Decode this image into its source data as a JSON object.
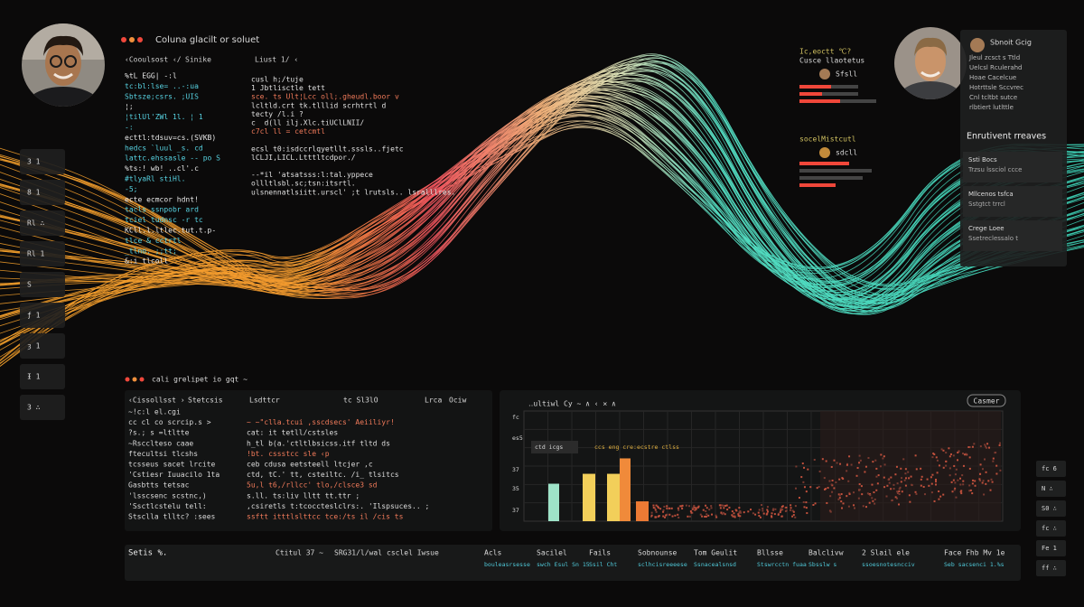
{
  "header": {
    "title": "Coluna glacilt or soluet"
  },
  "code_top": {
    "tab_left": "‹Cooulsost ‹/",
    "tab_mid": "Sinike",
    "tab_right": "Liust 1/ ‹",
    "col1": [
      "%tL EGG|  -:l",
      "tc:bl:lse= ..-:ua",
      "Sbtsze;csrs. ;UIS",
      "¦;",
      "¦tilUl'ZWl 1l. ¦ 1",
      "  -:",
      "ecttl:tdsuv=cs.(SVKB)",
      "hedcs  `luul _s. cd",
      "lattc.ehssasle -- po S",
      "%ts:! wb! ..cl'.c",
      "#tlyaRl stiHl.",
      "-5;",
      "ecte  ecmcor hdnt!",
      "tacls ssnpobr ard",
      "tciel  tudnsc -r tc",
      "KCll.l.ltlec.tut.t.p-",
      "tlce  & cctrtl",
      "_tlno. ;;tt;",
      "&:i  tlcoll"
    ],
    "col2": [
      "cusl h;/tuje",
      "1 Jbtlisctle tett",
      "sce. ts  Ult¦Lcc oll;.gheudl.boor v",
      "lcltld.crt  tk.tlllid  scrhtrtl  d",
      "   tecty  /l.i  ?",
      "c  d(ll  ilj.Xlc.tiUClLNII/",
      "c7cl  ll  = cetcmtl",
      "",
      "ecsl  t0:isdccrlqyetllt.sssls..fjetc",
      "   lCLJI,LICL.Ltttltcdpor./",
      "",
      "--*il  'atsatsss:l:tal.yppece",
      "  ollltlsbl.sc;tsn:itsrtl.  ",
      "ulsnennatlsiitt.urscl' ;t lrutsls.. lsralllres."
    ]
  },
  "left_tabs": [
    "3 1",
    "8 1",
    "Rl ∴",
    "Rl 1",
    "S",
    "ƒ 1",
    "ȝ 1",
    "Ɨ 1",
    "3 ∴"
  ],
  "profile_right": {
    "title": "Ic,eoctt ℃?",
    "subtitle": "Cusce llaotetus",
    "name": "Sfsll",
    "title2": "socelMistcutl",
    "name2": "sdcll"
  },
  "right_panel": {
    "user": "Sbnoit Gcig",
    "user_lines": [
      "Jleul  zcsct s Ttld",
      "Uelcsl Rculerahd",
      "Hoae Cacelcue",
      "Hotrttsle Sccvrec",
      "Cnl tcltbt sutce",
      "rlbtiert lutlttle"
    ],
    "heading": "Enrutivent rreaves",
    "list": [
      [
        "Ssti Bocs",
        "Trzsu lssciol ccce"
      ],
      [
        "Mllcenos tsfca",
        "Sstgtct trrcl"
      ],
      [
        "Crege Loee",
        "Ssetreclessalo t"
      ]
    ]
  },
  "bottom_code": {
    "header": "cali grelipet io gqt ~",
    "tabs": [
      "‹Cissollsst  ›",
      "Stetcsis",
      "Lsdttcr",
      "tc Sl3lO",
      "Lrca",
      "Ociw"
    ],
    "col1": [
      "~!c:l el.cgi",
      "cc cl  co  scrcip.s  >",
      "?s.; s =ltltte",
      "~Rscclteso caae",
      "ftecultsi tlcshs",
      "tcsseus sacet lrcite",
      "'Cstiesr Iuuacilo 1ta",
      "Gasbtts tetsac",
      "'lsscsenc scstnc,)",
      "'Ssctlcstelu tell:",
      "Stsclla tlltc?  :sees"
    ],
    "col2": [
      "",
      "~  ~\"clla.tcui ,sscdsecs' Aeiiliyr!",
      "   cat:  it   tetll/cstsles",
      "  h_tl  b(a.'ctltlbsicss.itf tltd ds",
      "  !bt.  cssstcc  sle  ‹p",
      "  ceb  cdusa eetsteell  ltcjer  ,c",
      "  ctd,   tC.'  tt,  csteiltc.  /i_  tlsitcs",
      "  5u,l  t6,/rllcc'  tlo,/clsce3  sd",
      "  s.ll.  ts:liv   lltt  tt.ttr  ;",
      "   ,csiretls  t:tcoccteslclrs:.  'Ilspsuces..  ;",
      "   ssftt  itttlslttcc  tce:/ts  il  /cis  ts"
    ]
  },
  "chart_panel": {
    "title": "‥ultiwl Cy ~  ∧ ‹ ✕ ∧",
    "button": "Casmer",
    "axis_texts": [
      "fc",
      "es5",
      "37",
      "35",
      "37"
    ],
    "legend": [
      "ctd icgs",
      "ccs eng cre:ecstre ctlss"
    ]
  },
  "chart_data": {
    "type": "bar",
    "categories": [
      null,
      null,
      null,
      null,
      null
    ],
    "values": [
      34,
      43,
      43,
      57,
      18
    ],
    "colors": [
      "#9ee3c8",
      "#f2cf5a",
      "#f2cf5a",
      "#f08a3a",
      "#ec7a34"
    ],
    "ylim": [
      0,
      100
    ]
  },
  "status_bar": {
    "row1": [
      "Setis %.",
      "Ctitul  37 ~",
      "SRG31/l/wal",
      "csclel  Iwsue",
      "Acls",
      "Sacilel",
      "Fails",
      "Sobnounse",
      "Tom Geulit",
      "Bllsse",
      "Balclivw",
      "2  Slail ele",
      "Face  Fhb  Mv  1e"
    ],
    "row2": [
      "",
      "",
      "",
      "",
      "bouleasrsesse",
      "swch Esul  Sn  15",
      "Ssil  Cht",
      "sclhcisreeeese",
      "Ssnacealsnsd",
      "Stswrcctn  fuaa",
      "Sbsslw  s",
      "ssoesnotesncciv",
      "Seb  sacsenci  1.%s"
    ]
  },
  "right_buttons": [
    "fc 6",
    "N ∴",
    "S0 ∴",
    "fc  ∴",
    "Fe 1",
    "ff ∴"
  ]
}
